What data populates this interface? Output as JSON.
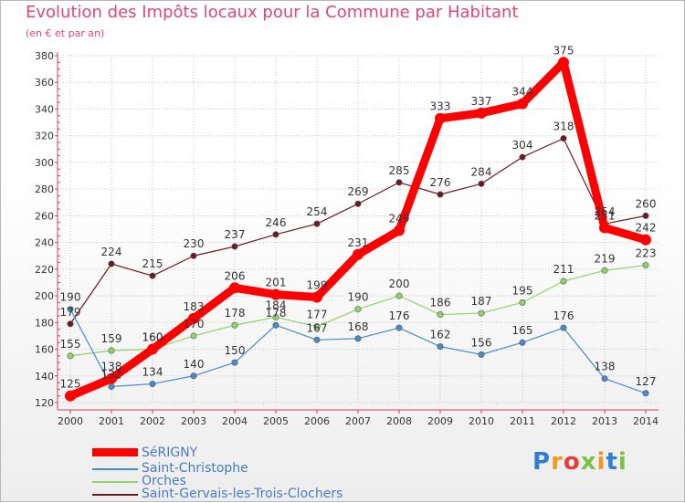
{
  "chart_data": {
    "type": "line",
    "title": "Evolution des Impôts locaux pour la Commune par Habitant",
    "subtitle": "(en € et par an)",
    "xlabel": "",
    "ylabel": "",
    "categories": [
      "2000",
      "2001",
      "2002",
      "2003",
      "2004",
      "2005",
      "2006",
      "2007",
      "2008",
      "2009",
      "2010",
      "2011",
      "2012",
      "2013",
      "2014"
    ],
    "ylim": [
      120,
      380
    ],
    "yticks": [
      120,
      140,
      160,
      180,
      200,
      220,
      240,
      260,
      280,
      300,
      320,
      340,
      360,
      380
    ],
    "grid": true,
    "series": [
      {
        "name": "SéRIGNY",
        "color": "#ff0000",
        "values": [
          125,
          138,
          160,
          183,
          206,
          201,
          199,
          231,
          249,
          333,
          337,
          344,
          375,
          251,
          242
        ]
      },
      {
        "name": "Saint-Christophe",
        "color": "#4a8ac8",
        "values": [
          190,
          132,
          134,
          140,
          150,
          178,
          167,
          168,
          176,
          162,
          156,
          165,
          176,
          138,
          127
        ]
      },
      {
        "name": "Orches",
        "color": "#8fd36b",
        "values": [
          155,
          159,
          160,
          170,
          178,
          184,
          177,
          190,
          200,
          186,
          187,
          195,
          211,
          219,
          223
        ]
      },
      {
        "name": "Saint-Gervais-les-Trois-Clochers",
        "color": "#6b1a24",
        "values": [
          179,
          224,
          215,
          230,
          237,
          246,
          254,
          269,
          285,
          276,
          284,
          304,
          318,
          254,
          260
        ]
      }
    ]
  },
  "legend": {
    "items": [
      {
        "label": "SéRIGNY"
      },
      {
        "label": "Saint-Christophe"
      },
      {
        "label": "Orches"
      },
      {
        "label": "Saint-Gervais-les-Trois-Clochers"
      }
    ]
  },
  "logo": {
    "text": "Proxiti",
    "letters": [
      "P",
      "r",
      "o",
      "x",
      "i",
      "t",
      "i"
    ],
    "colors": [
      "#2e7dd8",
      "#f29a1d",
      "#e33c3c",
      "#7cc242",
      "#f29a1d",
      "#2e7dd8",
      "#7cc242"
    ]
  }
}
